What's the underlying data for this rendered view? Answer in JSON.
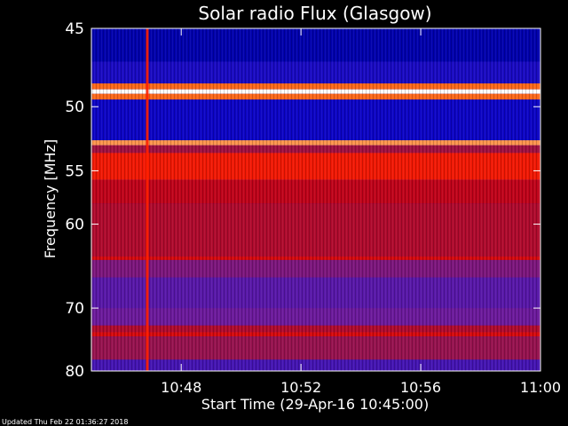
{
  "chart_data": {
    "type": "heatmap",
    "title": "Solar radio Flux (Glasgow)",
    "xlabel": "Start Time (29-Apr-16 10:45:00)",
    "ylabel": "Frequency [MHz]",
    "x_ticks": [
      "10:48",
      "10:52",
      "10:56",
      "11:00"
    ],
    "y_ticks": [
      45,
      50,
      55,
      60,
      70,
      80
    ],
    "y_scale": "reciprocal",
    "xlim": [
      "10:45:00",
      "11:00:00"
    ],
    "ylim_mhz": [
      45,
      80
    ],
    "colormap": [
      "#000040",
      "#0000c8",
      "#2a10c0",
      "#6a1aa0",
      "#a01040",
      "#c80010",
      "#ff2000",
      "#ff7a20",
      "#ffffff"
    ],
    "bands": [
      {
        "f_from": 45.0,
        "f_to": 47.0,
        "level": 0.1
      },
      {
        "f_from": 47.0,
        "f_to": 48.4,
        "level": 0.2
      },
      {
        "f_from": 48.4,
        "f_to": 48.8,
        "level": 0.85
      },
      {
        "f_from": 48.8,
        "f_to": 49.1,
        "level": 1.0
      },
      {
        "f_from": 49.1,
        "f_to": 49.5,
        "level": 0.85
      },
      {
        "f_from": 49.5,
        "f_to": 52.5,
        "level": 0.16
      },
      {
        "f_from": 52.5,
        "f_to": 52.9,
        "level": 0.9
      },
      {
        "f_from": 52.9,
        "f_to": 53.5,
        "level": 0.5
      },
      {
        "f_from": 53.5,
        "f_to": 55.8,
        "level": 0.72
      },
      {
        "f_from": 55.8,
        "f_to": 58.0,
        "level": 0.6
      },
      {
        "f_from": 58.0,
        "f_to": 63.5,
        "level": 0.55
      },
      {
        "f_from": 63.5,
        "f_to": 63.9,
        "level": 0.66
      },
      {
        "f_from": 63.9,
        "f_to": 66.0,
        "level": 0.42
      },
      {
        "f_from": 66.0,
        "f_to": 70.0,
        "level": 0.34
      },
      {
        "f_from": 70.0,
        "f_to": 72.5,
        "level": 0.38
      },
      {
        "f_from": 72.5,
        "f_to": 73.5,
        "level": 0.55
      },
      {
        "f_from": 73.5,
        "f_to": 74.2,
        "level": 0.66
      },
      {
        "f_from": 74.2,
        "f_to": 78.0,
        "level": 0.48
      },
      {
        "f_from": 78.0,
        "f_to": 80.0,
        "level": 0.3
      }
    ],
    "events": [
      {
        "time": "10:46:52",
        "f_from": 45.0,
        "f_to": 80.0,
        "level": 0.75,
        "kind": "vertical burst"
      }
    ]
  },
  "footer": {
    "updated": "Updated Thu Feb 22 01:36:27 2018"
  }
}
